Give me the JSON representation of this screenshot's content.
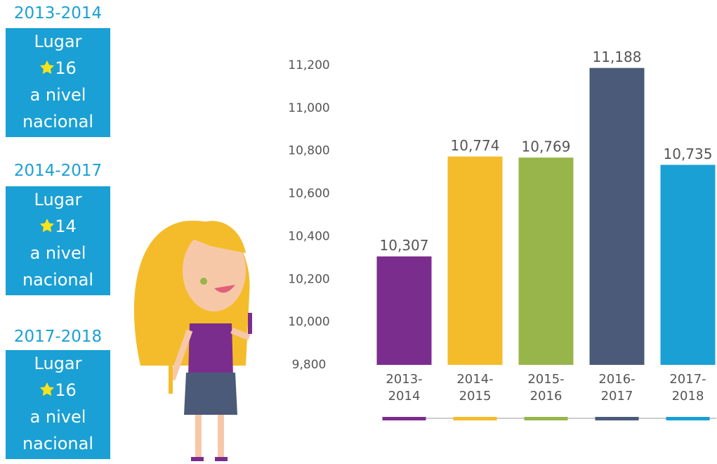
{
  "rankings": [
    {
      "period": "2013-2014",
      "label": "Lugar",
      "rank": 16,
      "line3": "a nivel",
      "line4": "nacional"
    },
    {
      "period": "2014-2017",
      "label": "Lugar",
      "rank": 14,
      "line3": "a nivel",
      "line4": "nacional"
    },
    {
      "period": "2017-2018",
      "label": "Lugar",
      "rank": 16,
      "line3": "a nivel",
      "line4": "nacional"
    }
  ],
  "chart_data": {
    "type": "bar",
    "categories": [
      "2013-2014",
      "2014-2015",
      "2015-2016",
      "2016-2017",
      "2017-2018"
    ],
    "values": [
      10307,
      10774,
      10769,
      11188,
      10735
    ],
    "value_labels": [
      "10,307",
      "10,774",
      "10,769",
      "11,188",
      "10,735"
    ],
    "colors": [
      "#7b2d8e",
      "#f4bc2a",
      "#97b54b",
      "#4a5a78",
      "#1aa0d4"
    ],
    "ylim": [
      9800,
      11200
    ],
    "yticks": [
      {
        "value": 9800,
        "label": "9,800"
      },
      {
        "value": 10000,
        "label": "10,000"
      },
      {
        "value": 10200,
        "label": "10,200"
      },
      {
        "value": 10400,
        "label": "10,400"
      },
      {
        "value": 10600,
        "label": "10,600"
      },
      {
        "value": 10800,
        "label": "10,800"
      },
      {
        "value": 11000,
        "label": "11,000"
      },
      {
        "value": 11200,
        "label": "11,200"
      }
    ],
    "grid": false
  }
}
